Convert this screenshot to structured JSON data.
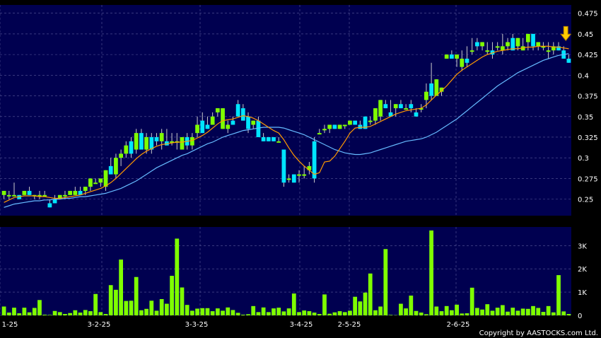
{
  "copyright": "Copyright by AASTOCKS.com Ltd.",
  "colors": {
    "panel_bg": "#000050",
    "page_bg": "#000000",
    "grid": "#5a5a9a",
    "candle_up": "#7fff00",
    "candle_down": "#00e5ff",
    "ma_short": "#ff9900",
    "ma_long": "#66bbff",
    "volume": "#7fff00",
    "marker": "#ffcc00"
  },
  "chart_data": [
    {
      "type": "candlestick",
      "title": "",
      "xlabel": "",
      "ylabel": "",
      "ylim": [
        0.23,
        0.485
      ],
      "y_ticks": [
        "0.25",
        "0.275",
        "0.3",
        "0.325",
        "0.35",
        "0.375",
        "0.4",
        "0.425",
        "0.45",
        "0.475"
      ],
      "x_ticks": [
        "1-25",
        "3-2-25",
        "3-3-25",
        "3-4-25",
        "2-5-25",
        "2-6-25"
      ],
      "grid": true,
      "marker": "down-arrow-above-last-candle",
      "ohlc": [
        [
          0.255,
          0.26,
          0.25,
          0.26
        ],
        [
          0.255,
          0.26,
          0.25,
          0.255
        ],
        [
          0.255,
          0.27,
          0.255,
          0.255
        ],
        [
          0.255,
          0.255,
          0.25,
          0.25
        ],
        [
          0.255,
          0.26,
          0.255,
          0.26
        ],
        [
          0.26,
          0.265,
          0.255,
          0.255
        ],
        [
          0.255,
          0.255,
          0.25,
          0.255
        ],
        [
          0.255,
          0.26,
          0.25,
          0.255
        ],
        [
          0.255,
          0.26,
          0.255,
          0.255
        ],
        [
          0.245,
          0.25,
          0.24,
          0.24
        ],
        [
          0.25,
          0.255,
          0.245,
          0.245
        ],
        [
          0.25,
          0.255,
          0.25,
          0.255
        ],
        [
          0.255,
          0.26,
          0.25,
          0.255
        ],
        [
          0.255,
          0.26,
          0.255,
          0.26
        ],
        [
          0.255,
          0.265,
          0.255,
          0.26
        ],
        [
          0.26,
          0.265,
          0.255,
          0.255
        ],
        [
          0.26,
          0.265,
          0.255,
          0.265
        ],
        [
          0.265,
          0.275,
          0.26,
          0.275
        ],
        [
          0.27,
          0.275,
          0.27,
          0.27
        ],
        [
          0.27,
          0.275,
          0.265,
          0.275
        ],
        [
          0.265,
          0.285,
          0.26,
          0.285
        ],
        [
          0.29,
          0.3,
          0.28,
          0.28
        ],
        [
          0.28,
          0.305,
          0.275,
          0.3
        ],
        [
          0.3,
          0.31,
          0.29,
          0.305
        ],
        [
          0.305,
          0.32,
          0.3,
          0.315
        ],
        [
          0.32,
          0.325,
          0.3,
          0.305
        ],
        [
          0.31,
          0.335,
          0.305,
          0.33
        ],
        [
          0.33,
          0.335,
          0.31,
          0.31
        ],
        [
          0.31,
          0.33,
          0.305,
          0.325
        ],
        [
          0.325,
          0.33,
          0.305,
          0.31
        ],
        [
          0.325,
          0.33,
          0.315,
          0.32
        ],
        [
          0.32,
          0.335,
          0.31,
          0.33
        ],
        [
          0.32,
          0.335,
          0.315,
          0.315
        ],
        [
          0.32,
          0.33,
          0.315,
          0.32
        ],
        [
          0.32,
          0.33,
          0.31,
          0.32
        ],
        [
          0.31,
          0.325,
          0.31,
          0.325
        ],
        [
          0.325,
          0.33,
          0.31,
          0.315
        ],
        [
          0.315,
          0.33,
          0.31,
          0.325
        ],
        [
          0.33,
          0.35,
          0.325,
          0.34
        ],
        [
          0.345,
          0.355,
          0.33,
          0.33
        ],
        [
          0.34,
          0.35,
          0.335,
          0.335
        ],
        [
          0.34,
          0.355,
          0.34,
          0.35
        ],
        [
          0.355,
          0.36,
          0.35,
          0.36
        ],
        [
          0.335,
          0.36,
          0.335,
          0.36
        ],
        [
          0.335,
          0.345,
          0.33,
          0.34
        ],
        [
          0.345,
          0.35,
          0.34,
          0.34
        ],
        [
          0.365,
          0.37,
          0.35,
          0.35
        ],
        [
          0.36,
          0.365,
          0.345,
          0.345
        ],
        [
          0.35,
          0.355,
          0.33,
          0.335
        ],
        [
          0.34,
          0.345,
          0.335,
          0.345
        ],
        [
          0.345,
          0.35,
          0.325,
          0.325
        ],
        [
          0.325,
          0.33,
          0.32,
          0.32
        ],
        [
          0.325,
          0.325,
          0.32,
          0.32
        ],
        [
          0.325,
          0.325,
          0.32,
          0.32
        ],
        [
          0.32,
          0.325,
          0.32,
          0.32
        ],
        [
          0.31,
          0.31,
          0.265,
          0.27
        ],
        [
          0.275,
          0.28,
          0.27,
          0.275
        ],
        [
          0.28,
          0.28,
          0.27,
          0.27
        ],
        [
          0.28,
          0.285,
          0.27,
          0.28
        ],
        [
          0.28,
          0.29,
          0.275,
          0.28
        ],
        [
          0.285,
          0.295,
          0.28,
          0.29
        ],
        [
          0.32,
          0.325,
          0.27,
          0.275
        ],
        [
          0.33,
          0.335,
          0.33,
          0.33
        ],
        [
          0.335,
          0.34,
          0.33,
          0.335
        ],
        [
          0.335,
          0.34,
          0.33,
          0.34
        ],
        [
          0.34,
          0.34,
          0.335,
          0.335
        ],
        [
          0.335,
          0.34,
          0.335,
          0.34
        ],
        [
          0.34,
          0.34,
          0.335,
          0.34
        ],
        [
          0.34,
          0.345,
          0.34,
          0.345
        ],
        [
          0.345,
          0.345,
          0.34,
          0.34
        ],
        [
          0.34,
          0.345,
          0.335,
          0.335
        ],
        [
          0.35,
          0.35,
          0.335,
          0.335
        ],
        [
          0.345,
          0.35,
          0.34,
          0.345
        ],
        [
          0.345,
          0.36,
          0.34,
          0.36
        ],
        [
          0.35,
          0.37,
          0.345,
          0.37
        ],
        [
          0.365,
          0.37,
          0.36,
          0.36
        ],
        [
          0.355,
          0.37,
          0.35,
          0.35
        ],
        [
          0.36,
          0.365,
          0.35,
          0.365
        ],
        [
          0.365,
          0.37,
          0.36,
          0.36
        ],
        [
          0.36,
          0.365,
          0.36,
          0.36
        ],
        [
          0.365,
          0.37,
          0.355,
          0.36
        ],
        [
          0.355,
          0.36,
          0.35,
          0.35
        ],
        [
          0.36,
          0.365,
          0.355,
          0.36
        ],
        [
          0.37,
          0.39,
          0.36,
          0.38
        ],
        [
          0.39,
          0.415,
          0.37,
          0.375
        ],
        [
          0.375,
          0.395,
          0.375,
          0.395
        ],
        [
          0.38,
          0.385,
          0.375,
          0.385
        ],
        [
          0.42,
          0.425,
          0.42,
          0.425
        ],
        [
          0.425,
          0.43,
          0.42,
          0.42
        ],
        [
          0.42,
          0.425,
          0.41,
          0.425
        ],
        [
          0.41,
          0.43,
          0.405,
          0.42
        ],
        [
          0.42,
          0.435,
          0.41,
          0.415
        ],
        [
          0.43,
          0.445,
          0.425,
          0.43
        ],
        [
          0.44,
          0.445,
          0.43,
          0.435
        ],
        [
          0.435,
          0.44,
          0.43,
          0.44
        ],
        [
          0.43,
          0.44,
          0.425,
          0.43
        ],
        [
          0.43,
          0.44,
          0.42,
          0.425
        ],
        [
          0.435,
          0.44,
          0.43,
          0.435
        ],
        [
          0.43,
          0.45,
          0.425,
          0.435
        ],
        [
          0.435,
          0.445,
          0.43,
          0.44
        ],
        [
          0.445,
          0.45,
          0.43,
          0.43
        ],
        [
          0.435,
          0.445,
          0.43,
          0.445
        ],
        [
          0.43,
          0.445,
          0.43,
          0.435
        ],
        [
          0.44,
          0.45,
          0.43,
          0.45
        ],
        [
          0.45,
          0.45,
          0.43,
          0.435
        ],
        [
          0.435,
          0.44,
          0.43,
          0.44
        ],
        [
          0.435,
          0.44,
          0.43,
          0.435
        ],
        [
          0.43,
          0.44,
          0.42,
          0.43
        ],
        [
          0.43,
          0.44,
          0.425,
          0.435
        ],
        [
          0.435,
          0.44,
          0.43,
          0.43
        ],
        [
          0.43,
          0.435,
          0.42,
          0.42
        ],
        [
          0.42,
          0.425,
          0.415,
          0.415
        ]
      ],
      "ma_short": [
        0.246,
        0.249,
        0.252,
        0.253,
        0.254,
        0.254,
        0.254,
        0.253,
        0.253,
        0.252,
        0.251,
        0.251,
        0.252,
        0.253,
        0.254,
        0.255,
        0.257,
        0.259,
        0.261,
        0.263,
        0.266,
        0.27,
        0.275,
        0.281,
        0.287,
        0.293,
        0.299,
        0.304,
        0.308,
        0.311,
        0.314,
        0.316,
        0.317,
        0.318,
        0.319,
        0.319,
        0.32,
        0.321,
        0.324,
        0.327,
        0.331,
        0.336,
        0.341,
        0.345,
        0.346,
        0.347,
        0.349,
        0.351,
        0.35,
        0.348,
        0.345,
        0.341,
        0.337,
        0.333,
        0.33,
        0.322,
        0.312,
        0.303,
        0.296,
        0.29,
        0.285,
        0.28,
        0.282,
        0.295,
        0.296,
        0.302,
        0.311,
        0.32,
        0.33,
        0.336,
        0.337,
        0.337,
        0.338,
        0.341,
        0.344,
        0.347,
        0.35,
        0.353,
        0.355,
        0.357,
        0.358,
        0.359,
        0.36,
        0.364,
        0.37,
        0.376,
        0.381,
        0.387,
        0.394,
        0.401,
        0.406,
        0.41,
        0.414,
        0.418,
        0.422,
        0.425,
        0.427,
        0.429,
        0.43,
        0.431,
        0.432,
        0.432,
        0.433,
        0.434,
        0.434,
        0.435,
        0.435,
        0.435,
        0.434,
        0.434,
        0.433,
        0.432
      ],
      "ma_long": [
        0.24,
        0.242,
        0.244,
        0.245,
        0.246,
        0.247,
        0.248,
        0.248,
        0.249,
        0.249,
        0.25,
        0.25,
        0.251,
        0.251,
        0.252,
        0.253,
        0.253,
        0.254,
        0.255,
        0.256,
        0.257,
        0.259,
        0.261,
        0.263,
        0.266,
        0.269,
        0.272,
        0.276,
        0.28,
        0.284,
        0.288,
        0.291,
        0.294,
        0.297,
        0.3,
        0.303,
        0.305,
        0.308,
        0.311,
        0.314,
        0.317,
        0.319,
        0.322,
        0.325,
        0.327,
        0.329,
        0.331,
        0.333,
        0.334,
        0.335,
        0.336,
        0.337,
        0.337,
        0.337,
        0.337,
        0.336,
        0.334,
        0.332,
        0.33,
        0.328,
        0.325,
        0.322,
        0.319,
        0.316,
        0.313,
        0.31,
        0.308,
        0.306,
        0.305,
        0.304,
        0.304,
        0.305,
        0.306,
        0.308,
        0.31,
        0.312,
        0.314,
        0.316,
        0.318,
        0.32,
        0.321,
        0.322,
        0.323,
        0.325,
        0.328,
        0.331,
        0.335,
        0.339,
        0.343,
        0.347,
        0.352,
        0.357,
        0.362,
        0.367,
        0.372,
        0.377,
        0.382,
        0.387,
        0.391,
        0.395,
        0.399,
        0.403,
        0.406,
        0.409,
        0.412,
        0.415,
        0.418,
        0.42,
        0.422,
        0.424,
        0.425,
        0.426
      ]
    },
    {
      "type": "bar",
      "title": "",
      "xlabel": "",
      "ylabel": "",
      "ylim": [
        0,
        3800
      ],
      "y_ticks": [
        "0",
        "1K",
        "2K",
        "3K"
      ],
      "grid": true,
      "values": [
        380,
        120,
        330,
        90,
        330,
        130,
        320,
        660,
        30,
        20,
        190,
        140,
        60,
        100,
        220,
        120,
        230,
        180,
        920,
        140,
        60,
        1300,
        1100,
        2400,
        620,
        630,
        1650,
        220,
        280,
        630,
        200,
        700,
        500,
        1700,
        3300,
        1200,
        450,
        200,
        290,
        310,
        310,
        180,
        300,
        200,
        340,
        230,
        110,
        30,
        50,
        400,
        140,
        340,
        140,
        300,
        330,
        170,
        300,
        940,
        140,
        210,
        180,
        120,
        60,
        900,
        70,
        130,
        180,
        140,
        200,
        800,
        600,
        980,
        1800,
        220,
        380,
        2850,
        20,
        10,
        500,
        300,
        850,
        190,
        120,
        50,
        3650,
        380,
        180,
        400,
        220,
        460,
        80,
        90,
        1190,
        320,
        250,
        480,
        200,
        330,
        440,
        160,
        330,
        200,
        290,
        280,
        400,
        320,
        150,
        400,
        130,
        1730,
        170,
        60
      ]
    }
  ]
}
